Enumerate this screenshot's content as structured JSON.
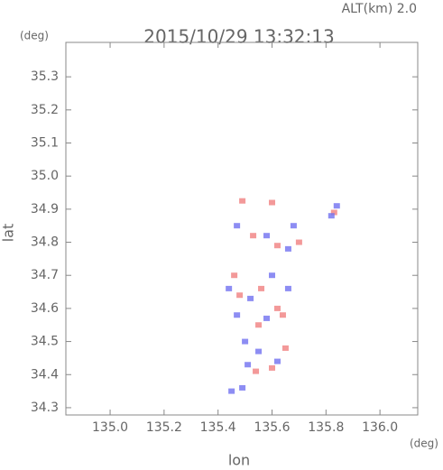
{
  "chart_data": {
    "type": "scatter",
    "title": "2015/10/29 13:32:13",
    "annotation": "ALT(km) 2.0",
    "xlabel": "lon",
    "ylabel": "lat",
    "xunit": "(deg)",
    "yunit": "(deg)",
    "xlim": [
      134.836,
      136.14
    ],
    "ylim": [
      34.278,
      35.404
    ],
    "xticks": [
      {
        "value": 135,
        "label": "135.0"
      },
      135.2,
      135.4,
      135.6,
      135.8,
      {
        "value": 136,
        "label": "136.0"
      }
    ],
    "yticks": [
      34.3,
      34.4,
      34.5,
      34.6,
      34.7,
      34.8,
      34.9,
      {
        "value": 35,
        "label": "35.0"
      },
      35.1,
      35.2,
      35.3
    ],
    "series": [
      {
        "color": "#f08080",
        "x": [
          135.49,
          135.6,
          135.53,
          135.62,
          135.48,
          135.56,
          135.62,
          135.55,
          135.65,
          135.6,
          135.54,
          135.64,
          135.83,
          135.7,
          135.46
        ],
        "values": [
          34.925,
          34.92,
          34.82,
          34.79,
          34.64,
          34.66,
          34.6,
          34.55,
          34.48,
          34.42,
          34.41,
          34.58,
          34.89,
          34.8,
          34.7
        ]
      },
      {
        "color": "#7070f0",
        "x": [
          135.84,
          135.82,
          135.47,
          135.58,
          135.66,
          135.44,
          135.52,
          135.6,
          135.58,
          135.47,
          135.5,
          135.55,
          135.62,
          135.51,
          135.45,
          135.49,
          135.66,
          135.68
        ],
        "values": [
          34.91,
          34.88,
          34.85,
          34.82,
          34.78,
          34.66,
          34.63,
          34.7,
          34.57,
          34.58,
          34.5,
          34.47,
          34.44,
          34.43,
          34.35,
          34.36,
          34.66,
          34.85
        ]
      }
    ]
  }
}
